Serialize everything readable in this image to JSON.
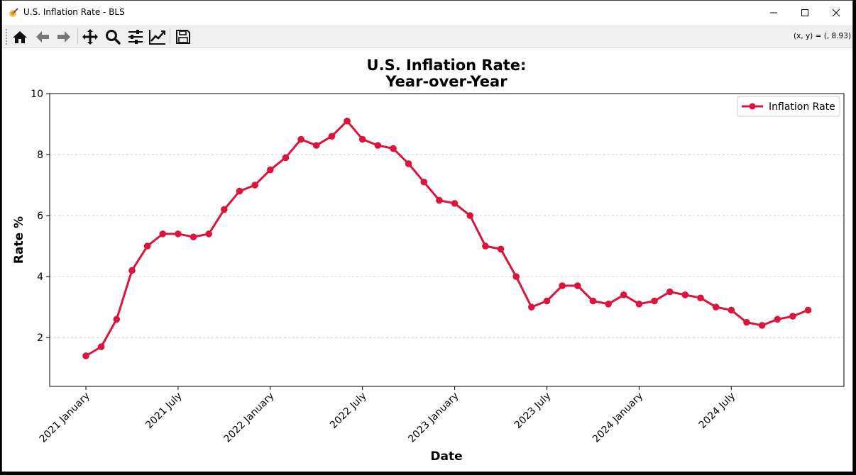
{
  "window": {
    "title": "U.S. Inflation Rate - BLS",
    "minimize_icon": "minimize-icon",
    "maximize_icon": "maximize-icon",
    "close_icon": "close-icon"
  },
  "toolbar": {
    "tools": [
      {
        "name": "home-icon"
      },
      {
        "name": "back-arrow-icon"
      },
      {
        "name": "forward-arrow-icon"
      },
      {
        "name": "pan-icon"
      },
      {
        "name": "zoom-icon"
      },
      {
        "name": "configure-subplots-icon"
      },
      {
        "name": "edit-axes-icon"
      },
      {
        "name": "save-icon"
      }
    ],
    "coords_readout": "(x, y) = (, 8.93)"
  },
  "colors": {
    "line": "#dc143c",
    "grid": "#c8c8c8",
    "text": "#000000"
  },
  "chart_data": {
    "type": "line",
    "title_line1": "U.S. Inflation Rate:",
    "title_line2": "Year-over-Year",
    "xlabel": "Date",
    "ylabel": "Rate %",
    "ylim": [
      0.4,
      10
    ],
    "yticks": [
      2,
      4,
      6,
      8,
      10
    ],
    "xticks": [
      "2021 January",
      "2021 July",
      "2022 January",
      "2022 July",
      "2023 January",
      "2023 July",
      "2024 January",
      "2024 July"
    ],
    "xtick_month_index": [
      0,
      6,
      12,
      18,
      24,
      30,
      36,
      42
    ],
    "grid": "horizontal dashed",
    "legend_position": "top-right",
    "series": [
      {
        "name": "Inflation Rate",
        "color": "#dc143c",
        "x": [
          "2021-01",
          "2021-02",
          "2021-03",
          "2021-04",
          "2021-05",
          "2021-06",
          "2021-07",
          "2021-08",
          "2021-09",
          "2021-10",
          "2021-11",
          "2021-12",
          "2022-01",
          "2022-02",
          "2022-03",
          "2022-04",
          "2022-05",
          "2022-06",
          "2022-07",
          "2022-08",
          "2022-09",
          "2022-10",
          "2022-11",
          "2022-12",
          "2023-01",
          "2023-02",
          "2023-03",
          "2023-04",
          "2023-05",
          "2023-06",
          "2023-07",
          "2023-08",
          "2023-09",
          "2023-10",
          "2023-11",
          "2023-12",
          "2024-01",
          "2024-02",
          "2024-03",
          "2024-04",
          "2024-05",
          "2024-06",
          "2024-07",
          "2024-08",
          "2024-09",
          "2024-10",
          "2024-11",
          "2024-12"
        ],
        "values": [
          1.4,
          1.7,
          2.6,
          4.2,
          5.0,
          5.4,
          5.4,
          5.3,
          5.4,
          6.2,
          6.8,
          7.0,
          7.5,
          7.9,
          8.5,
          8.3,
          8.6,
          9.1,
          8.5,
          8.3,
          8.2,
          7.7,
          7.1,
          6.5,
          6.4,
          6.0,
          5.0,
          4.9,
          4.0,
          3.0,
          3.2,
          3.7,
          3.7,
          3.2,
          3.1,
          3.4,
          3.1,
          3.2,
          3.5,
          3.4,
          3.3,
          3.0,
          2.9,
          2.5,
          2.4,
          2.6,
          2.7,
          2.9
        ]
      }
    ]
  }
}
